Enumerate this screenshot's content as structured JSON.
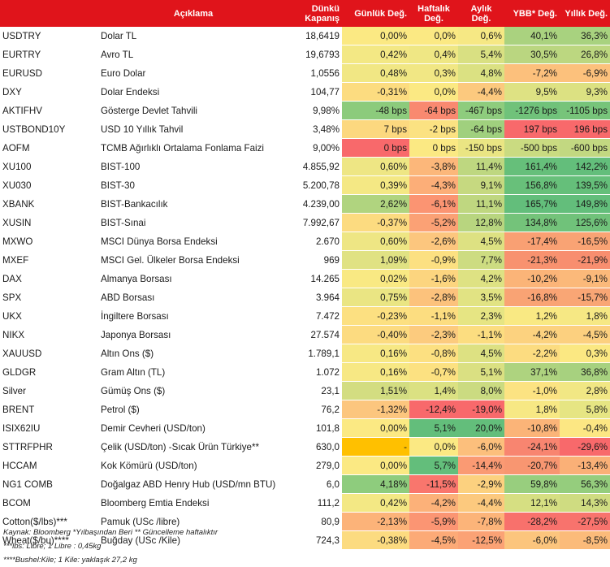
{
  "headers": {
    "aciklama": "Açıklama",
    "kapanis": "Dünkü Kapanış",
    "gunluk": "Günlük Değ.",
    "haftalik": "Haftalık Değ.",
    "aylik": "Aylık Değ.",
    "ybb": "YBB* Değ.",
    "yillik": "Yıllık Değ."
  },
  "rows": [
    {
      "code": "USDTRY",
      "desc": "Dolar TL",
      "close": "18,6419",
      "d": "0,00%",
      "w": "0,0%",
      "m": "0,6%",
      "ytd": "40,1%",
      "y": "36,3%",
      "c": [
        "#fbe983",
        "#fbe983",
        "#f6e884",
        "#aad27f",
        "#a8d27f"
      ]
    },
    {
      "code": "EURTRY",
      "desc": "Avro TL",
      "close": "19,6793",
      "d": "0,42%",
      "w": "0,4%",
      "m": "5,4%",
      "ytd": "30,5%",
      "y": "26,8%",
      "c": [
        "#f3e884",
        "#efe784",
        "#d9e082",
        "#bad680",
        "#bcd780"
      ]
    },
    {
      "code": "EURUSD",
      "desc": "Euro Dolar",
      "close": "1,0556",
      "d": "0,48%",
      "w": "0,3%",
      "m": "4,8%",
      "ytd": "-7,2%",
      "y": "-6,9%",
      "c": [
        "#f1e784",
        "#f1e784",
        "#dbe182",
        "#fcc07c",
        "#fcc17c"
      ]
    },
    {
      "code": "DXY",
      "desc": "Dolar Endeksi",
      "close": "104,77",
      "d": "-0,31%",
      "w": "0,0%",
      "m": "-4,4%",
      "ytd": "9,5%",
      "y": "9,3%",
      "c": [
        "#fcdc80",
        "#fbe983",
        "#fcc97e",
        "#dee283",
        "#dce182"
      ]
    },
    {
      "code": "AKTIFHV",
      "desc": "Gösterge Devlet Tahvili",
      "close": "9,98%",
      "d": "-48 bps",
      "w": "-64 bps",
      "m": "-467 bps",
      "ytd": "-1276 bps",
      "y": "-1105 bps",
      "c": [
        "#8ccb7c",
        "#f98970",
        "#8ecc7d",
        "#70c27a",
        "#77c47a"
      ]
    },
    {
      "code": "USTBOND10Y",
      "desc": "USD 10 Yıllık Tahvil",
      "close": "3,48%",
      "d": "7 bps",
      "w": "-2 bps",
      "m": "-64 bps",
      "ytd": "197 bps",
      "y": "196 bps",
      "c": [
        "#fcd87f",
        "#fbe282",
        "#a0d07e",
        "#f8696b",
        "#f8696b"
      ]
    },
    {
      "code": "AOFM",
      "desc": "TCMB Ağırlıklı Ortalama Fonlama Faizi",
      "close": "9,00%",
      "d": "0 bps",
      "w": "0 bps",
      "m": "-150 bps",
      "ytd": "-500 bps",
      "y": "-600 bps",
      "c": [
        "#f8696b",
        "#fbe983",
        "#eae583",
        "#cadb81",
        "#c2d881"
      ]
    },
    {
      "code": "XU100",
      "desc": "BIST-100",
      "close": "4.855,92",
      "d": "0,60%",
      "w": "-3,8%",
      "m": "11,4%",
      "ytd": "161,4%",
      "y": "142,2%",
      "c": [
        "#eee684",
        "#fcb77a",
        "#bed780",
        "#66bf7a",
        "#63be7b"
      ]
    },
    {
      "code": "XU030",
      "desc": "BIST-30",
      "close": "5.200,78",
      "d": "0,39%",
      "w": "-4,3%",
      "m": "9,1%",
      "ytd": "156,8%",
      "y": "139,5%",
      "c": [
        "#f4e884",
        "#fcae78",
        "#c6d980",
        "#68c07a",
        "#65bf7a"
      ]
    },
    {
      "code": "XBANK",
      "desc": "BIST-Bankacılık",
      "close": "4.239,00",
      "d": "2,62%",
      "w": "-6,1%",
      "m": "11,1%",
      "ytd": "165,7%",
      "y": "149,8%",
      "c": [
        "#b0d47f",
        "#fb9472",
        "#bfd780",
        "#63be7b",
        "#63be7b"
      ]
    },
    {
      "code": "XUSIN",
      "desc": "BIST-Sınai",
      "close": "7.992,67",
      "d": "-0,37%",
      "w": "-5,2%",
      "m": "12,8%",
      "ytd": "134,8%",
      "y": "125,6%",
      "c": [
        "#fcdb80",
        "#fba175",
        "#b8d57f",
        "#74c37a",
        "#70c27a"
      ]
    },
    {
      "code": "MXWO",
      "desc": "MSCI Dünya Borsa Endeksi",
      "close": "2.670",
      "d": "0,60%",
      "w": "-2,6%",
      "m": "4,5%",
      "ytd": "-17,4%",
      "y": "-16,5%",
      "c": [
        "#eee684",
        "#fcc67e",
        "#dde182",
        "#f9a073",
        "#f9a374"
      ]
    },
    {
      "code": "MXEF",
      "desc": "MSCI Gel. Ülkeler Borsa Endeksi",
      "close": "969",
      "d": "1,09%",
      "w": "-0,9%",
      "m": "7,7%",
      "ytd": "-21,3%",
      "y": "-21,9%",
      "c": [
        "#e0e283",
        "#fce081",
        "#cddc81",
        "#f8926f",
        "#f88e6f"
      ]
    },
    {
      "code": "DAX",
      "desc": "Almanya Borsası",
      "close": "14.265",
      "d": "0,02%",
      "w": "-1,6%",
      "m": "4,2%",
      "ytd": "-10,2%",
      "y": "-9,1%",
      "c": [
        "#f9e983",
        "#fcd57f",
        "#dee283",
        "#fbb478",
        "#fbb97a"
      ]
    },
    {
      "code": "SPX",
      "desc": "ABD Borsası",
      "close": "3.964",
      "d": "0,75%",
      "w": "-2,8%",
      "m": "3,5%",
      "ytd": "-16,8%",
      "y": "-15,7%",
      "c": [
        "#eae583",
        "#fcc27c",
        "#e1e383",
        "#f9a374",
        "#f9a675"
      ]
    },
    {
      "code": "UKX",
      "desc": "İngiltere Borsası",
      "close": "7.472",
      "d": "-0,23%",
      "w": "-1,1%",
      "m": "2,3%",
      "ytd": "1,2%",
      "y": "1,8%",
      "c": [
        "#fce081",
        "#fcdd80",
        "#e6e583",
        "#f9e983",
        "#f6e884"
      ]
    },
    {
      "code": "NIKX",
      "desc": "Japonya Borsası",
      "close": "27.574",
      "d": "-0,40%",
      "w": "-2,3%",
      "m": "-1,1%",
      "ytd": "-4,2%",
      "y": "-4,5%",
      "c": [
        "#fcdb80",
        "#fccb7e",
        "#fcdd80",
        "#fcd27f",
        "#fcd07f"
      ]
    },
    {
      "code": "XAUUSD",
      "desc": "Altın Ons ($)",
      "close": "1.789,1",
      "d": "0,16%",
      "w": "-0,8%",
      "m": "4,5%",
      "ytd": "-2,2%",
      "y": "0,3%",
      "c": [
        "#f7e884",
        "#fce081",
        "#dde182",
        "#fcdc80",
        "#fbe882"
      ]
    },
    {
      "code": "GLDGR",
      "desc": "Gram Altın (TL)",
      "close": "1.072",
      "d": "0,16%",
      "w": "-0,7%",
      "m": "5,1%",
      "ytd": "37,1%",
      "y": "36,8%",
      "c": [
        "#f7e884",
        "#fce181",
        "#dae082",
        "#aed37f",
        "#a7d17f"
      ]
    },
    {
      "code": "Silver",
      "desc": "Gümüş Ons ($)",
      "close": "23,1",
      "d": "1,51%",
      "w": "1,4%",
      "m": "8,0%",
      "ytd": "-1,0%",
      "y": "2,8%",
      "c": [
        "#d3dd81",
        "#dbe182",
        "#cbdb81",
        "#fce382",
        "#f1e784"
      ]
    },
    {
      "code": "BRENT",
      "desc": "Petrol ($)",
      "close": "76,2",
      "d": "-1,32%",
      "w": "-12,4%",
      "m": "-19,0%",
      "ytd": "1,8%",
      "y": "5,8%",
      "c": [
        "#fcc67e",
        "#f8696b",
        "#f8696b",
        "#f7e884",
        "#e6e583"
      ]
    },
    {
      "code": "ISIX62IU",
      "desc": "Demir Cevheri (USD/ton)",
      "close": "101,8",
      "d": "0,00%",
      "w": "5,1%",
      "m": "20,0%",
      "ytd": "-10,8%",
      "y": "-0,4%",
      "c": [
        "#fbe983",
        "#63be7b",
        "#63be7b",
        "#fbb478",
        "#fce783"
      ]
    },
    {
      "code": "STTRFPHR",
      "desc": "Çelik (USD/ton) -Sıcak Ürün Türkiye**",
      "close": "630,0",
      "d": "-",
      "w": "0,0%",
      "m": "-6,0%",
      "ytd": "-24,1%",
      "y": "-29,6%",
      "c": [
        "#ffc000",
        "#fbe983",
        "#fcbf7c",
        "#f88570",
        "#f8696b"
      ]
    },
    {
      "code": "HCCAM",
      "desc": "Kok Kömürü (USD/ton)",
      "close": "279,0",
      "d": "0,00%",
      "w": "5,7%",
      "m": "-14,4%",
      "ytd": "-20,7%",
      "y": "-13,4%",
      "c": [
        "#fbe983",
        "#63be7b",
        "#fa9a73",
        "#f89671",
        "#fab077"
      ]
    },
    {
      "code": "NG1 COMB",
      "desc": "Doğalgaz ABD Henry Hub (USD/mn BTU)",
      "close": "6,0",
      "d": "4,18%",
      "w": "-11,5%",
      "m": "-2,9%",
      "ytd": "59,8%",
      "y": "56,3%",
      "c": [
        "#8ecc7d",
        "#f9766d",
        "#fcd17f",
        "#98ce7e",
        "#95cd7d"
      ]
    },
    {
      "code": "BCOM",
      "desc": "Bloomberg Emtia Endeksi",
      "close": "111,2",
      "d": "0,42%",
      "w": "-4,2%",
      "m": "-4,4%",
      "ytd": "12,1%",
      "y": "14,3%",
      "c": [
        "#f3e884",
        "#fcb179",
        "#fcc97e",
        "#d6df82",
        "#cfdc81"
      ]
    },
    {
      "code": "Cotton($/lbs)***",
      "desc": "Pamuk (USc /libre)",
      "close": "80,9",
      "d": "-2,13%",
      "w": "-5,9%",
      "m": "-7,8%",
      "ytd": "-28,2%",
      "y": "-27,5%",
      "c": [
        "#fcb379",
        "#fb9573",
        "#fcb479",
        "#f8716c",
        "#f8736d"
      ]
    },
    {
      "code": "Wheat($/bu)****",
      "desc": "Buğday (USc /Kile)",
      "close": "724,3",
      "d": "-0,38%",
      "w": "-4,5%",
      "m": "-12,5%",
      "ytd": "-6,0%",
      "y": "-8,5%",
      "c": [
        "#fcdb80",
        "#fcaa77",
        "#fba275",
        "#fcc57d",
        "#fbbb7a"
      ]
    }
  ],
  "footnotes": [
    "Kaynak: Bloomberg *Yılbaşından Beri  ** Güncelleme haftalıktır",
    "***lbs: Libre; 1 Libre : 0,45kg",
    "****Bushel:Kile; 1 Kile: yaklaşık 27,2 kg"
  ]
}
